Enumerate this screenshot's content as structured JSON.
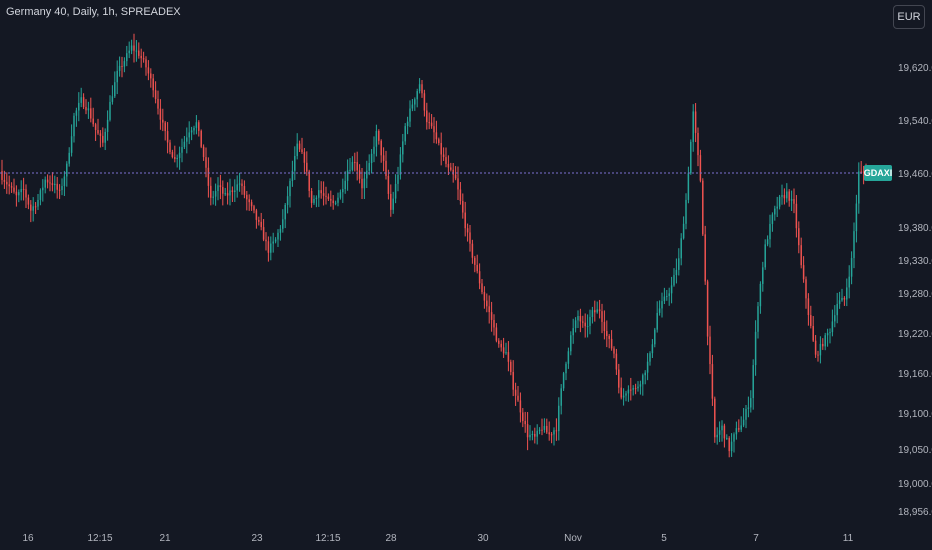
{
  "header": {
    "title": "Germany 40, Daily, 1h, SPREADEX",
    "currency_button": "EUR"
  },
  "colors": {
    "background": "#141823",
    "up": "#26a69a",
    "down": "#ef5350",
    "price_line": "#7b6fd0",
    "badge": "#26a69a"
  },
  "chart_data": {
    "type": "candlestick",
    "title": "Germany 40, Daily, 1h, SPREADEX",
    "y_tick_labels": [
      "19,620.0",
      "19,540.0",
      "19,460.0",
      "19,380.0",
      "19,330.0",
      "19,280.0",
      "19,220.0",
      "19,160.0",
      "19,100.0",
      "19,050.0",
      "19,000.0",
      "18,956.0"
    ],
    "x_tick_labels": [
      "16",
      "12:15",
      "21",
      "23",
      "12:15",
      "28",
      "30",
      "Nov",
      "5",
      "7",
      "11"
    ],
    "symbol_label": "GDAXI",
    "last_price": 19460,
    "close_series": [
      19455,
      19440,
      19425,
      19435,
      19405,
      19420,
      19450,
      19445,
      19430,
      19470,
      19545,
      19570,
      19555,
      19525,
      19505,
      19565,
      19610,
      19630,
      19650,
      19640,
      19620,
      19590,
      19545,
      19505,
      19480,
      19500,
      19525,
      19535,
      19485,
      19420,
      19440,
      19425,
      19435,
      19445,
      19420,
      19400,
      19375,
      19345,
      19360,
      19390,
      19445,
      19500,
      19480,
      19415,
      19435,
      19420,
      19415,
      19430,
      19465,
      19480,
      19440,
      19470,
      19520,
      19475,
      19405,
      19460,
      19530,
      19565,
      19595,
      19540,
      19520,
      19490,
      19465,
      19450,
      19400,
      19350,
      19310,
      19270,
      19240,
      19200,
      19190,
      19140,
      19105,
      19070,
      19065,
      19080,
      19070,
      19080,
      19160,
      19215,
      19245,
      19225,
      19250,
      19255,
      19215,
      19190,
      19120,
      19140,
      19135,
      19155,
      19185,
      19250,
      19270,
      19290,
      19330,
      19420,
      19550,
      19450,
      19220,
      19065,
      19080,
      19050,
      19075,
      19090,
      19125,
      19265,
      19350,
      19395,
      19420,
      19430,
      19410,
      19320,
      19250,
      19185,
      19205,
      19225,
      19265,
      19270,
      19330,
      19460,
      19460
    ]
  }
}
